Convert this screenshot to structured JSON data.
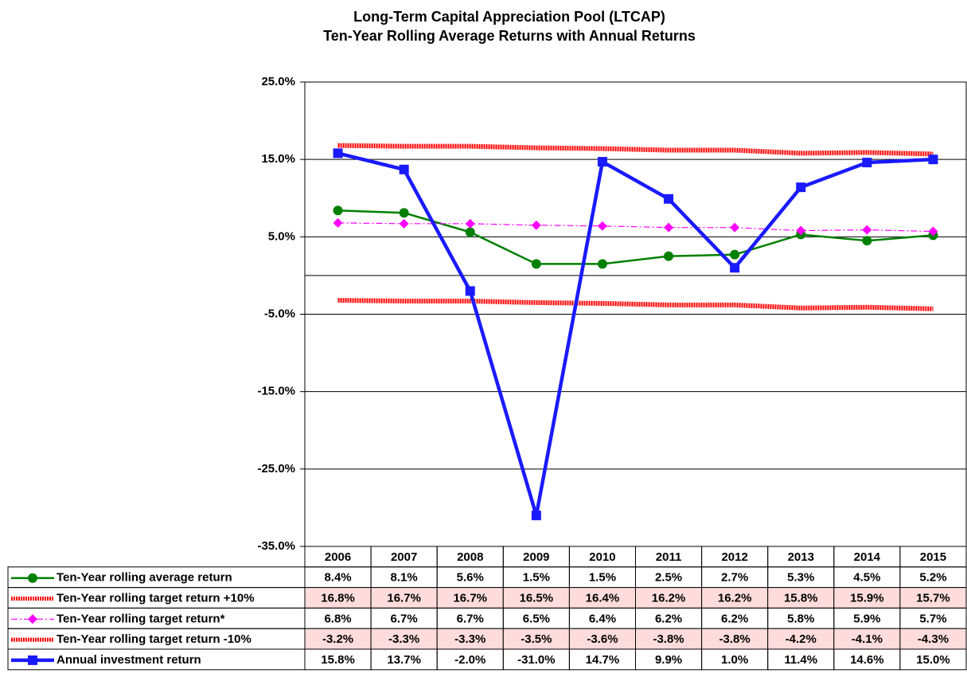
{
  "chart_data": {
    "type": "line",
    "title": "Long-Term Capital Appreciation Pool (LTCAP)",
    "subtitle": "Ten-Year Rolling Average Returns with Annual Returns",
    "categories": [
      "2006",
      "2007",
      "2008",
      "2009",
      "2010",
      "2011",
      "2012",
      "2013",
      "2014",
      "2015"
    ],
    "ylim": [
      -35,
      25
    ],
    "yticks": [
      {
        "value": -35,
        "label": "-35.0%"
      },
      {
        "value": -25,
        "label": "-25.0%"
      },
      {
        "value": -15,
        "label": "-15.0%"
      },
      {
        "value": -5,
        "label": "-5.0%"
      },
      {
        "value": 5,
        "label": "5.0%"
      },
      {
        "value": 15,
        "label": "15.0%"
      },
      {
        "value": 25,
        "label": "25.0%"
      }
    ],
    "grid": true,
    "series": [
      {
        "name": "Ten-Year rolling average return",
        "color": "#008000",
        "marker": "circle",
        "line_style": "solid",
        "values": [
          8.4,
          8.1,
          5.6,
          1.5,
          1.5,
          2.5,
          2.7,
          5.3,
          4.5,
          5.2
        ],
        "value_labels": [
          "8.4%",
          "8.1%",
          "5.6%",
          "1.5%",
          "1.5%",
          "2.5%",
          "2.7%",
          "5.3%",
          "4.5%",
          "5.2%"
        ]
      },
      {
        "name": "Ten-Year rolling target return +10%",
        "color": "#ff0000",
        "marker": "none",
        "line_style": "wavy",
        "cell_color": "#ffdcdc",
        "values": [
          16.8,
          16.7,
          16.7,
          16.5,
          16.4,
          16.2,
          16.2,
          15.8,
          15.9,
          15.7
        ],
        "value_labels": [
          "16.8%",
          "16.7%",
          "16.7%",
          "16.5%",
          "16.4%",
          "16.2%",
          "16.2%",
          "15.8%",
          "15.9%",
          "15.7%"
        ]
      },
      {
        "name": "Ten-Year rolling target return*",
        "color": "#ff00ff",
        "marker": "diamond",
        "line_style": "dashdot",
        "values": [
          6.8,
          6.7,
          6.7,
          6.5,
          6.4,
          6.2,
          6.2,
          5.8,
          5.9,
          5.7
        ],
        "value_labels": [
          "6.8%",
          "6.7%",
          "6.7%",
          "6.5%",
          "6.4%",
          "6.2%",
          "6.2%",
          "5.8%",
          "5.9%",
          "5.7%"
        ]
      },
      {
        "name": "Ten-Year rolling target return -10%",
        "color": "#ff0000",
        "marker": "none",
        "line_style": "wavy",
        "cell_color": "#ffdcdc",
        "values": [
          -3.2,
          -3.3,
          -3.3,
          -3.5,
          -3.6,
          -3.8,
          -3.8,
          -4.2,
          -4.1,
          -4.3
        ],
        "value_labels": [
          "-3.2%",
          "-3.3%",
          "-3.3%",
          "-3.5%",
          "-3.6%",
          "-3.8%",
          "-3.8%",
          "-4.2%",
          "-4.1%",
          "-4.3%"
        ]
      },
      {
        "name": "Annual investment return",
        "color": "#1a1aff",
        "marker": "square",
        "line_style": "bold",
        "values": [
          15.8,
          13.7,
          -2.0,
          -31.0,
          14.7,
          9.9,
          1.0,
          11.4,
          14.6,
          15.0
        ],
        "value_labels": [
          "15.8%",
          "13.7%",
          "-2.0%",
          "-31.0%",
          "14.7%",
          "9.9%",
          "1.0%",
          "11.4%",
          "14.6%",
          "15.0%"
        ]
      }
    ]
  }
}
